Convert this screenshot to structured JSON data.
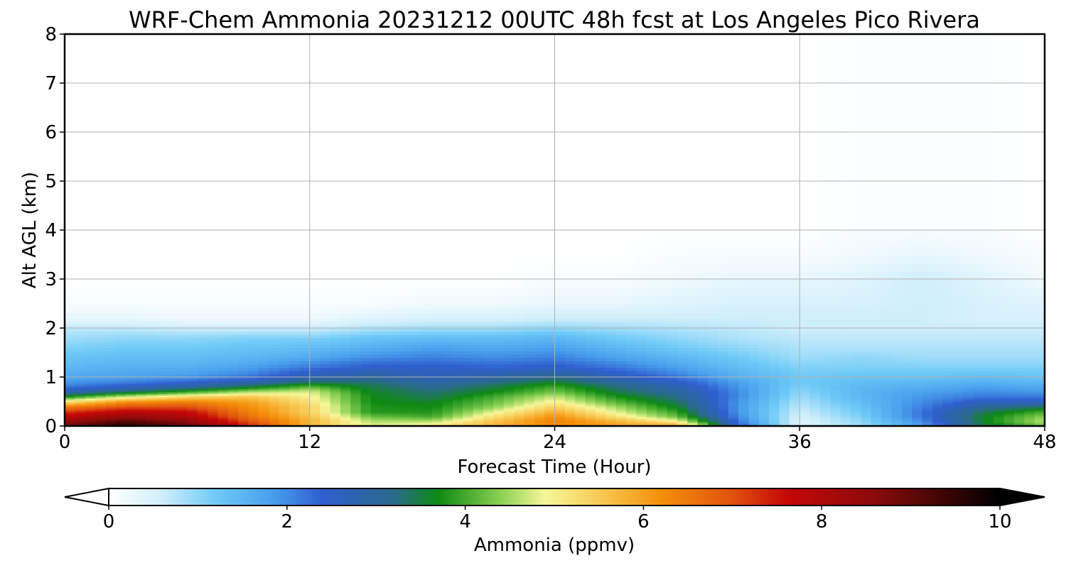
{
  "chart_data": {
    "type": "heatmap",
    "title": "WRF-Chem Ammonia  20231212 00UTC 48h fcst at Los Angeles Pico Rivera",
    "xlabel": "Forecast Time (Hour)",
    "ylabel": "Alt AGL (km)",
    "xlim": [
      0,
      48
    ],
    "ylim": [
      0,
      8
    ],
    "xticks": [
      "0",
      "12",
      "24",
      "36",
      "48"
    ],
    "yticks": [
      "0",
      "1",
      "2",
      "3",
      "4",
      "5",
      "6",
      "7",
      "8"
    ],
    "grid": true,
    "colorbar": {
      "label": "Ammonia  (ppmv)",
      "range": [
        0,
        10
      ],
      "ticks": [
        "0",
        "2",
        "4",
        "6",
        "8",
        "10"
      ],
      "extend": "both",
      "stops": [
        [
          0,
          "#ffffff"
        ],
        [
          0.6,
          "#cfeefb"
        ],
        [
          1.2,
          "#6fcaf7"
        ],
        [
          1.8,
          "#4aa2ee"
        ],
        [
          2.4,
          "#2f5fcf"
        ],
        [
          3.2,
          "#2a6a8a"
        ],
        [
          3.7,
          "#0e8a12"
        ],
        [
          4.4,
          "#8bd154"
        ],
        [
          4.9,
          "#f7f79a"
        ],
        [
          5.6,
          "#f8c24a"
        ],
        [
          6.2,
          "#f58f0a"
        ],
        [
          7.0,
          "#e0520f"
        ],
        [
          7.6,
          "#c50807"
        ],
        [
          8.6,
          "#8a0b0b"
        ],
        [
          10,
          "#000000"
        ]
      ]
    },
    "x": [
      0,
      3,
      6,
      9,
      12,
      15,
      18,
      21,
      24,
      27,
      30,
      33,
      36,
      39,
      42,
      45,
      48
    ],
    "y": [
      0,
      0.1,
      0.2,
      0.3,
      0.4,
      0.5,
      0.6,
      0.7,
      0.8,
      0.9,
      1.0,
      1.2,
      1.4,
      1.6,
      1.8,
      2.0,
      2.2,
      2.5,
      3.0,
      3.5,
      4.0,
      8.0
    ],
    "z": [
      [
        9.0,
        9.7,
        9.0,
        7.5,
        5.6,
        4.8,
        5.2,
        5.8,
        6.2,
        6.0,
        6.2,
        2.5,
        0.4,
        0.9,
        1.8,
        3.4,
        4.2
      ],
      [
        8.4,
        9.2,
        8.6,
        7.0,
        5.8,
        4.6,
        4.6,
        5.6,
        6.4,
        5.8,
        5.0,
        2.2,
        0.4,
        1.0,
        2.0,
        3.6,
        4.6
      ],
      [
        7.8,
        8.4,
        8.0,
        6.6,
        5.6,
        4.2,
        4.0,
        5.2,
        6.2,
        5.2,
        4.2,
        2.0,
        0.5,
        1.1,
        2.2,
        3.6,
        4.4
      ],
      [
        7.2,
        7.8,
        7.6,
        6.4,
        5.4,
        3.8,
        3.8,
        4.8,
        5.8,
        4.8,
        3.9,
        1.9,
        0.6,
        1.2,
        2.2,
        3.4,
        4.0
      ],
      [
        6.4,
        7.0,
        7.0,
        6.2,
        5.4,
        3.8,
        3.7,
        4.4,
        5.4,
        4.5,
        3.6,
        1.9,
        0.7,
        1.3,
        2.1,
        3.0,
        3.4
      ],
      [
        5.2,
        6.2,
        6.4,
        6.0,
        5.2,
        3.7,
        3.6,
        4.2,
        5.0,
        4.1,
        3.4,
        1.9,
        0.8,
        1.4,
        2.0,
        2.6,
        2.6
      ],
      [
        3.8,
        4.8,
        5.4,
        5.6,
        5.0,
        3.7,
        3.4,
        4.0,
        4.7,
        3.8,
        3.2,
        2.0,
        0.9,
        1.5,
        1.9,
        2.2,
        2.2
      ],
      [
        2.8,
        3.4,
        4.0,
        4.6,
        4.8,
        3.6,
        3.3,
        3.7,
        4.3,
        3.5,
        3.0,
        2.0,
        1.0,
        1.5,
        1.8,
        2.0,
        1.9
      ],
      [
        2.2,
        2.6,
        3.0,
        3.6,
        4.2,
        3.5,
        3.1,
        3.5,
        4.0,
        3.3,
        2.8,
        1.9,
        1.1,
        1.5,
        1.6,
        1.8,
        1.7
      ],
      [
        1.9,
        2.1,
        2.4,
        2.8,
        3.4,
        3.3,
        2.9,
        3.2,
        3.6,
        3.0,
        2.5,
        1.8,
        1.2,
        1.4,
        1.5,
        1.6,
        1.5
      ],
      [
        1.7,
        1.8,
        1.9,
        2.2,
        2.8,
        3.0,
        2.7,
        2.9,
        3.2,
        2.7,
        2.2,
        1.6,
        1.2,
        1.3,
        1.3,
        1.4,
        1.3
      ],
      [
        1.5,
        1.6,
        1.6,
        1.8,
        2.2,
        2.5,
        2.5,
        2.4,
        2.5,
        2.2,
        1.8,
        1.4,
        1.1,
        1.1,
        1.1,
        1.1,
        1.1
      ],
      [
        1.3,
        1.4,
        1.4,
        1.5,
        1.7,
        2.0,
        2.1,
        2.0,
        2.1,
        1.8,
        1.5,
        1.2,
        0.9,
        1.0,
        0.9,
        0.9,
        0.9
      ],
      [
        1.1,
        1.2,
        1.2,
        1.3,
        1.4,
        1.6,
        1.8,
        1.7,
        1.8,
        1.5,
        1.2,
        1.0,
        0.8,
        0.8,
        0.8,
        0.8,
        0.8
      ],
      [
        0.9,
        1.0,
        1.0,
        1.1,
        1.1,
        1.3,
        1.4,
        1.4,
        1.5,
        1.2,
        1.0,
        0.8,
        0.7,
        0.7,
        0.7,
        0.7,
        0.7
      ],
      [
        0.7,
        0.7,
        0.6,
        0.6,
        0.6,
        0.8,
        0.9,
        0.9,
        1.0,
        0.9,
        0.8,
        0.7,
        0.6,
        0.6,
        0.6,
        0.6,
        0.6
      ],
      [
        0.3,
        0.3,
        0.2,
        0.2,
        0.2,
        0.4,
        0.5,
        0.5,
        0.6,
        0.6,
        0.6,
        0.6,
        0.6,
        0.6,
        0.6,
        0.5,
        0.5
      ],
      [
        0.1,
        0.1,
        0.1,
        0.1,
        0.1,
        0.1,
        0.2,
        0.2,
        0.3,
        0.3,
        0.4,
        0.5,
        0.5,
        0.5,
        0.6,
        0.5,
        0.4
      ],
      [
        0,
        0,
        0,
        0,
        0,
        0,
        0,
        0,
        0.1,
        0.1,
        0.2,
        0.3,
        0.3,
        0.4,
        0.6,
        0.4,
        0.2
      ],
      [
        0,
        0,
        0,
        0,
        0,
        0,
        0,
        0,
        0,
        0,
        0.1,
        0.1,
        0.1,
        0.2,
        0.3,
        0.2,
        0.1
      ],
      [
        0,
        0,
        0,
        0,
        0,
        0,
        0,
        0,
        0,
        0,
        0,
        0,
        0,
        0.1,
        0.1,
        0.1,
        0
      ],
      [
        0,
        0,
        0,
        0,
        0,
        0,
        0,
        0,
        0,
        0,
        0,
        0,
        0,
        0,
        0,
        0,
        0
      ]
    ]
  }
}
